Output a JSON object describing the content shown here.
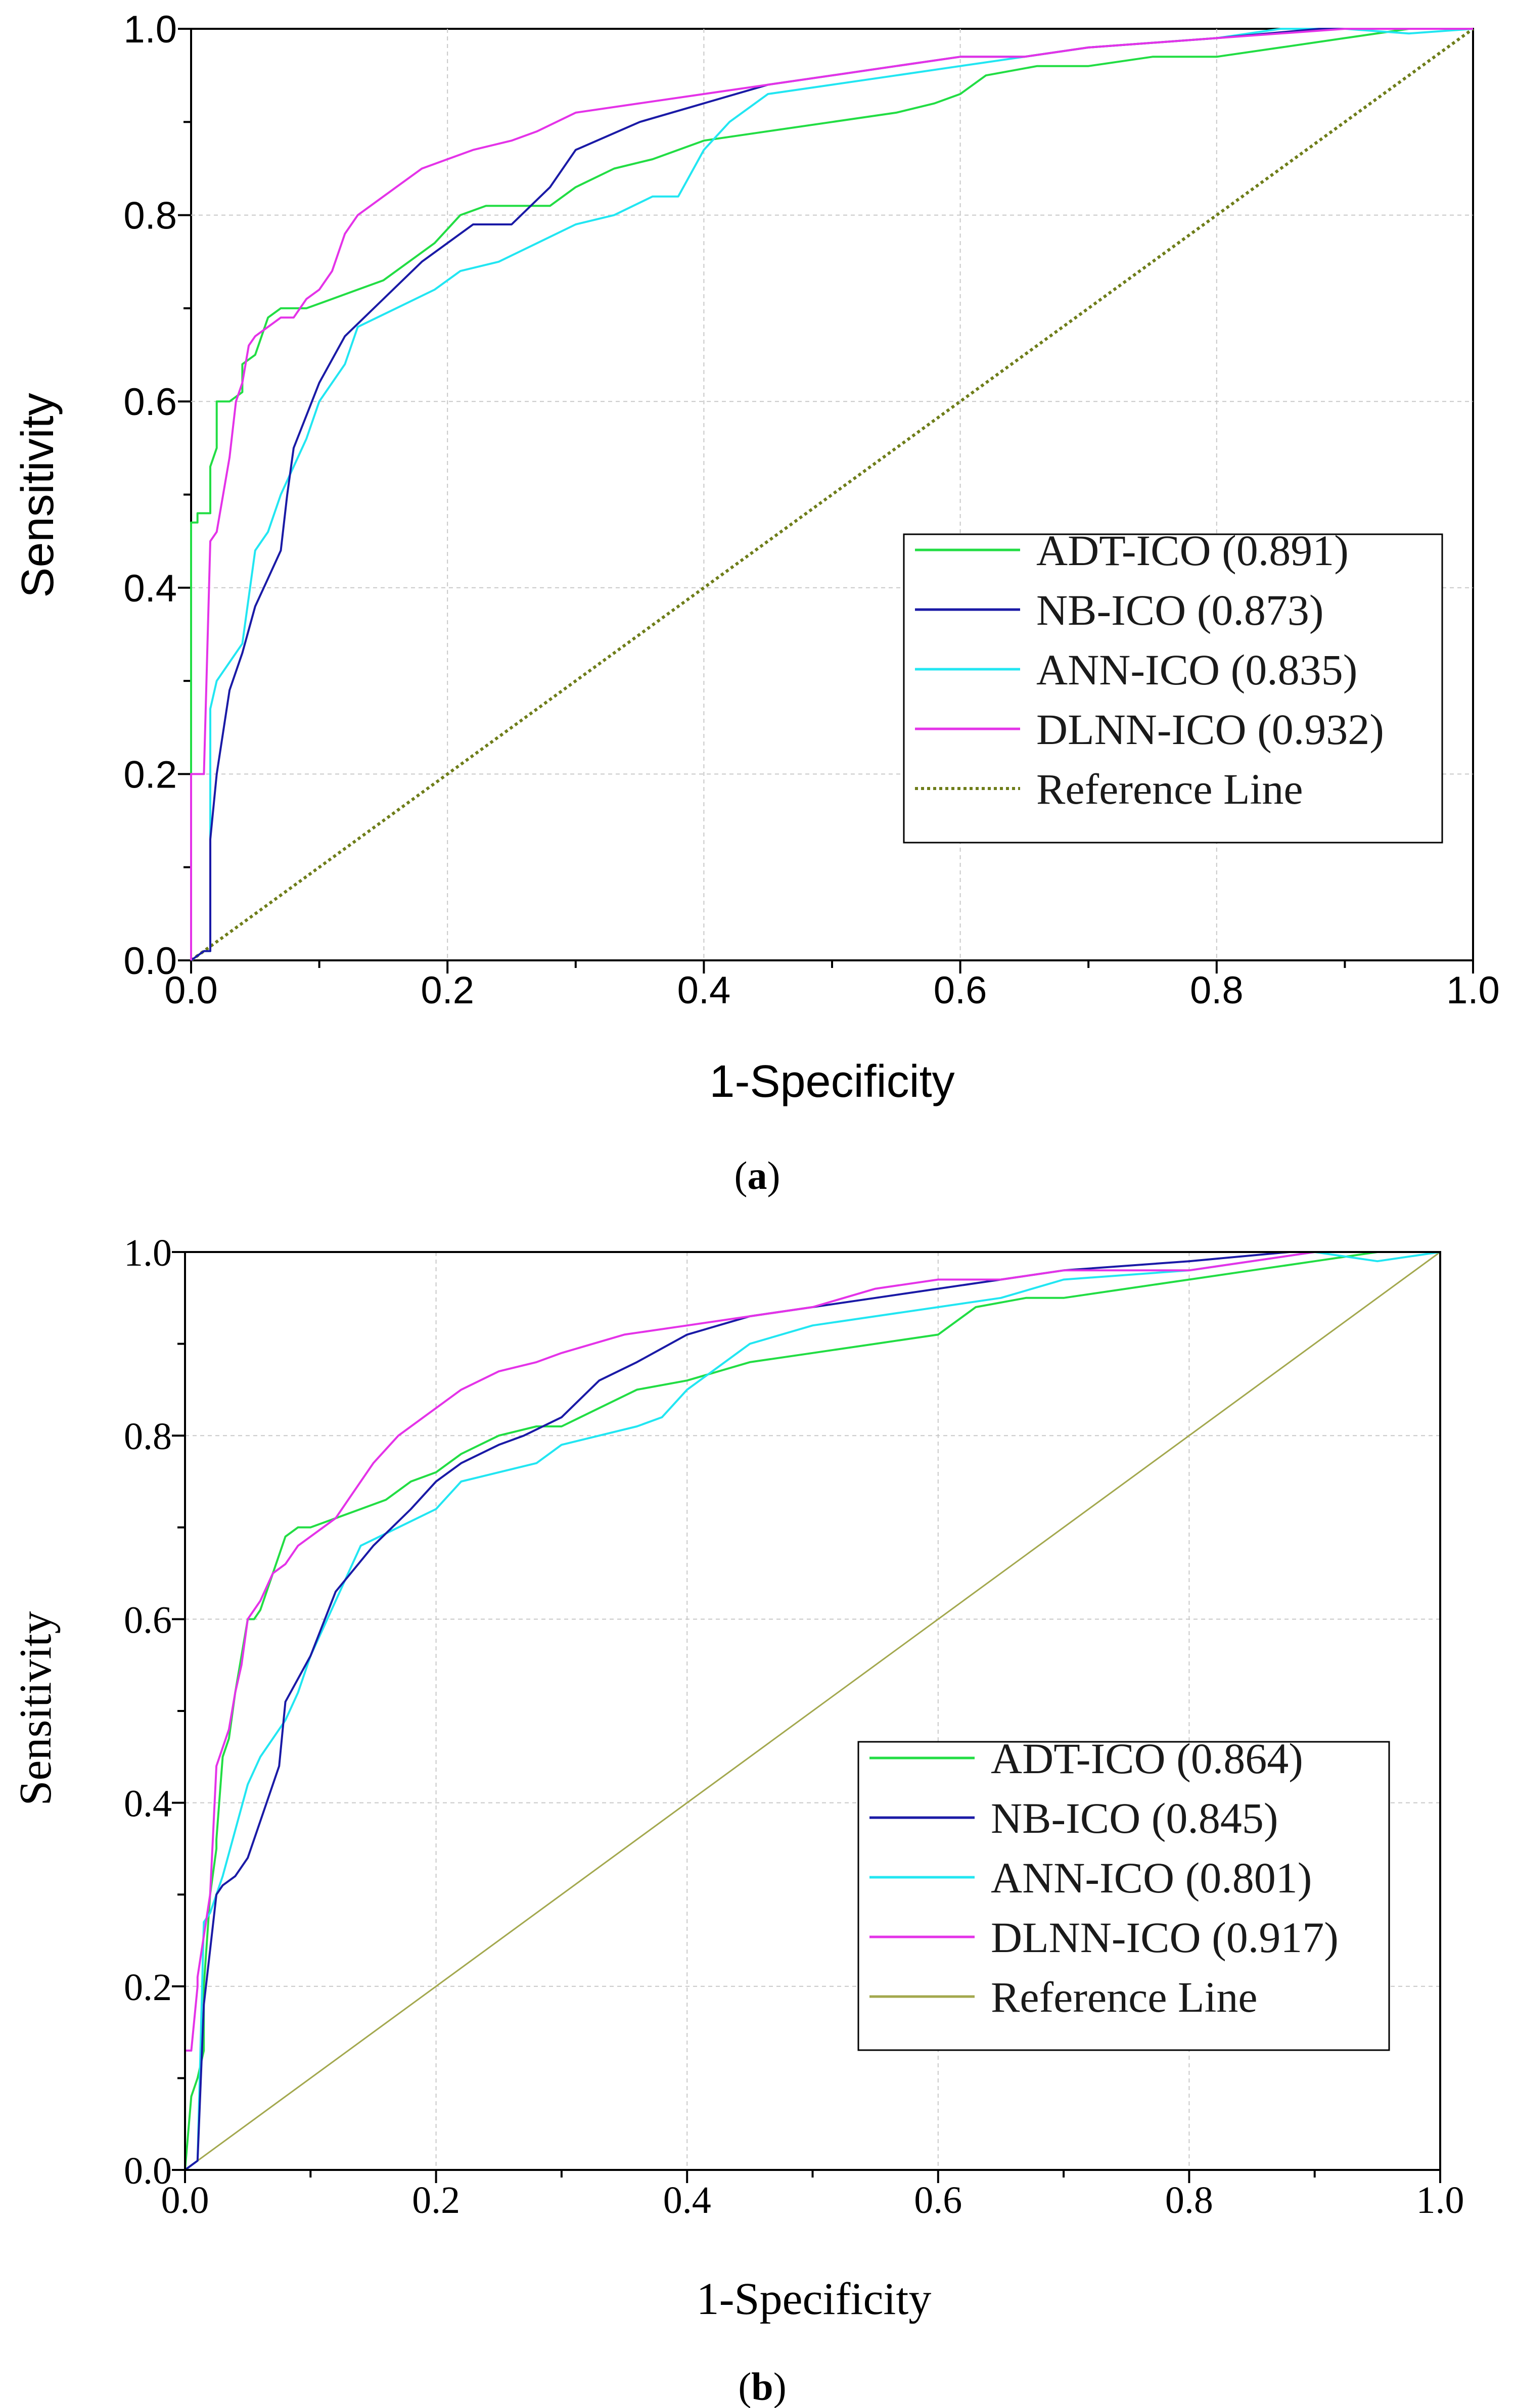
{
  "chart_data": [
    {
      "type": "line",
      "panel_label": "a",
      "xlabel": "1-Specificity",
      "ylabel": "Sensitivity",
      "xlim": [
        0,
        1
      ],
      "ylim": [
        0,
        1
      ],
      "x_ticks": [
        "0.0",
        "0.2",
        "0.4",
        "0.6",
        "0.8",
        "1.0"
      ],
      "y_ticks": [
        "0.0",
        "0.2",
        "0.4",
        "0.6",
        "0.8",
        "1.0"
      ],
      "grid": true,
      "legend_position": "bottom-right",
      "series": [
        {
          "name": "ADT-ICO (0.891)",
          "color": "#22dd44",
          "x": [
            0,
            0,
            0.005,
            0.005,
            0.015,
            0.015,
            0.02,
            0.02,
            0.03,
            0.04,
            0.04,
            0.05,
            0.055,
            0.06,
            0.07,
            0.09,
            0.11,
            0.13,
            0.15,
            0.17,
            0.19,
            0.21,
            0.23,
            0.25,
            0.28,
            0.3,
            0.33,
            0.36,
            0.4,
            0.45,
            0.5,
            0.55,
            0.58,
            0.6,
            0.62,
            0.66,
            0.7,
            0.75,
            0.8,
            0.85,
            0.9,
            0.95,
            1.0
          ],
          "y": [
            0,
            0.47,
            0.47,
            0.48,
            0.48,
            0.53,
            0.55,
            0.6,
            0.6,
            0.61,
            0.64,
            0.65,
            0.67,
            0.69,
            0.7,
            0.7,
            0.71,
            0.72,
            0.73,
            0.75,
            0.77,
            0.8,
            0.81,
            0.81,
            0.81,
            0.83,
            0.85,
            0.86,
            0.88,
            0.89,
            0.9,
            0.91,
            0.92,
            0.93,
            0.95,
            0.96,
            0.96,
            0.97,
            0.97,
            0.98,
            0.99,
            1.0,
            1.0
          ]
        },
        {
          "name": "NB-ICO (0.873)",
          "color": "#1a1aa6",
          "x": [
            0,
            0.01,
            0.015,
            0.015,
            0.02,
            0.03,
            0.04,
            0.05,
            0.06,
            0.07,
            0.075,
            0.08,
            0.1,
            0.12,
            0.15,
            0.18,
            0.2,
            0.22,
            0.25,
            0.28,
            0.3,
            0.35,
            0.4,
            0.45,
            0.5,
            0.55,
            0.6,
            0.65,
            0.7,
            0.8,
            0.88,
            0.95,
            1.0
          ],
          "y": [
            0,
            0.01,
            0.01,
            0.13,
            0.2,
            0.29,
            0.33,
            0.38,
            0.41,
            0.44,
            0.5,
            0.55,
            0.62,
            0.67,
            0.71,
            0.75,
            0.77,
            0.79,
            0.79,
            0.83,
            0.87,
            0.9,
            0.92,
            0.94,
            0.95,
            0.96,
            0.97,
            0.97,
            0.98,
            0.99,
            1.0,
            1.0,
            1.0
          ]
        },
        {
          "name": "ANN-ICO (0.835)",
          "color": "#22e6f2",
          "x": [
            0,
            0.01,
            0.015,
            0.015,
            0.02,
            0.04,
            0.05,
            0.06,
            0.07,
            0.08,
            0.09,
            0.1,
            0.12,
            0.13,
            0.16,
            0.19,
            0.21,
            0.24,
            0.27,
            0.3,
            0.33,
            0.36,
            0.38,
            0.4,
            0.42,
            0.45,
            0.5,
            0.55,
            0.6,
            0.65,
            0.7,
            0.8,
            0.85,
            0.9,
            0.95,
            1.0
          ],
          "y": [
            0,
            0.01,
            0.01,
            0.27,
            0.3,
            0.34,
            0.44,
            0.46,
            0.5,
            0.53,
            0.56,
            0.6,
            0.64,
            0.68,
            0.7,
            0.72,
            0.74,
            0.75,
            0.77,
            0.79,
            0.8,
            0.82,
            0.82,
            0.87,
            0.9,
            0.93,
            0.94,
            0.95,
            0.96,
            0.97,
            0.98,
            0.99,
            1.0,
            1.0,
            0.995,
            1.0
          ]
        },
        {
          "name": "DLNN-ICO (0.932)",
          "color": "#e433e8",
          "x": [
            0,
            0,
            0.01,
            0.015,
            0.02,
            0.025,
            0.03,
            0.035,
            0.04,
            0.045,
            0.05,
            0.06,
            0.07,
            0.08,
            0.09,
            0.1,
            0.11,
            0.12,
            0.13,
            0.14,
            0.16,
            0.18,
            0.2,
            0.22,
            0.25,
            0.27,
            0.3,
            0.35,
            0.4,
            0.45,
            0.5,
            0.55,
            0.6,
            0.65,
            0.7,
            0.8,
            0.9,
            1.0
          ],
          "y": [
            0,
            0.2,
            0.2,
            0.45,
            0.46,
            0.5,
            0.54,
            0.6,
            0.62,
            0.66,
            0.67,
            0.68,
            0.69,
            0.69,
            0.71,
            0.72,
            0.74,
            0.78,
            0.8,
            0.81,
            0.83,
            0.85,
            0.86,
            0.87,
            0.88,
            0.89,
            0.91,
            0.92,
            0.93,
            0.94,
            0.95,
            0.96,
            0.97,
            0.97,
            0.98,
            0.99,
            1.0,
            1.0
          ]
        },
        {
          "name": "Reference Line",
          "color": "#6e7d19",
          "dash": "dotted",
          "x": [
            0,
            1
          ],
          "y": [
            0,
            1
          ]
        }
      ]
    },
    {
      "type": "line",
      "panel_label": "b",
      "xlabel": "1-Specificity",
      "ylabel": "Sensitivity",
      "xlim": [
        0,
        1
      ],
      "ylim": [
        0,
        1
      ],
      "x_ticks": [
        "0.0",
        "0.2",
        "0.4",
        "0.6",
        "0.8",
        "1.0"
      ],
      "y_ticks": [
        "0.0",
        "0.2",
        "0.4",
        "0.6",
        "0.8",
        "1.0"
      ],
      "grid": true,
      "legend_position": "bottom-right",
      "series": [
        {
          "name": "ADT-ICO (0.864)",
          "color": "#22dd44",
          "x": [
            0,
            0.005,
            0.005,
            0.01,
            0.015,
            0.015,
            0.02,
            0.025,
            0.025,
            0.03,
            0.035,
            0.04,
            0.05,
            0.055,
            0.06,
            0.07,
            0.08,
            0.09,
            0.1,
            0.12,
            0.14,
            0.16,
            0.18,
            0.2,
            0.22,
            0.25,
            0.28,
            0.3,
            0.33,
            0.36,
            0.4,
            0.45,
            0.5,
            0.55,
            0.6,
            0.63,
            0.67,
            0.7,
            0.75,
            0.8,
            0.85,
            0.9,
            0.95,
            1.0
          ],
          "y": [
            0,
            0.08,
            0.08,
            0.1,
            0.13,
            0.2,
            0.3,
            0.35,
            0.36,
            0.45,
            0.47,
            0.52,
            0.6,
            0.6,
            0.61,
            0.65,
            0.69,
            0.7,
            0.7,
            0.71,
            0.72,
            0.73,
            0.75,
            0.76,
            0.78,
            0.8,
            0.81,
            0.81,
            0.83,
            0.85,
            0.86,
            0.88,
            0.89,
            0.9,
            0.91,
            0.94,
            0.95,
            0.95,
            0.96,
            0.97,
            0.98,
            0.99,
            1.0,
            1.0
          ]
        },
        {
          "name": "NB-ICO (0.845)",
          "color": "#1a1aa6",
          "x": [
            0,
            0.01,
            0.015,
            0.02,
            0.025,
            0.03,
            0.04,
            0.05,
            0.06,
            0.075,
            0.08,
            0.1,
            0.12,
            0.15,
            0.18,
            0.2,
            0.22,
            0.25,
            0.27,
            0.3,
            0.33,
            0.36,
            0.4,
            0.45,
            0.5,
            0.55,
            0.6,
            0.65,
            0.7,
            0.8,
            0.88,
            0.95,
            1.0
          ],
          "y": [
            0,
            0.01,
            0.18,
            0.24,
            0.3,
            0.31,
            0.32,
            0.34,
            0.38,
            0.44,
            0.51,
            0.56,
            0.63,
            0.68,
            0.72,
            0.75,
            0.77,
            0.79,
            0.8,
            0.82,
            0.86,
            0.88,
            0.91,
            0.93,
            0.94,
            0.95,
            0.96,
            0.97,
            0.98,
            0.99,
            1.0,
            1.0,
            1.0
          ]
        },
        {
          "name": "ANN-ICO (0.801)",
          "color": "#22e6f2",
          "x": [
            0,
            0.01,
            0.015,
            0.02,
            0.03,
            0.04,
            0.05,
            0.06,
            0.07,
            0.08,
            0.09,
            0.1,
            0.12,
            0.14,
            0.17,
            0.2,
            0.22,
            0.25,
            0.28,
            0.3,
            0.33,
            0.36,
            0.38,
            0.4,
            0.42,
            0.45,
            0.5,
            0.55,
            0.6,
            0.65,
            0.7,
            0.8,
            0.85,
            0.9,
            0.95,
            1.0
          ],
          "y": [
            0,
            0.01,
            0.27,
            0.28,
            0.32,
            0.37,
            0.42,
            0.45,
            0.47,
            0.49,
            0.52,
            0.56,
            0.62,
            0.68,
            0.7,
            0.72,
            0.75,
            0.76,
            0.77,
            0.79,
            0.8,
            0.81,
            0.82,
            0.85,
            0.87,
            0.9,
            0.92,
            0.93,
            0.94,
            0.95,
            0.97,
            0.98,
            0.99,
            1.0,
            0.99,
            1.0
          ]
        },
        {
          "name": "DLNN-ICO (0.917)",
          "color": "#e433e8",
          "x": [
            0,
            0,
            0.005,
            0.01,
            0.01,
            0.02,
            0.025,
            0.03,
            0.035,
            0.04,
            0.045,
            0.05,
            0.06,
            0.07,
            0.08,
            0.09,
            0.1,
            0.12,
            0.13,
            0.15,
            0.17,
            0.2,
            0.22,
            0.25,
            0.28,
            0.3,
            0.35,
            0.4,
            0.45,
            0.5,
            0.55,
            0.6,
            0.65,
            0.7,
            0.8,
            0.9,
            1.0
          ],
          "y": [
            0,
            0.13,
            0.13,
            0.2,
            0.21,
            0.3,
            0.44,
            0.46,
            0.48,
            0.52,
            0.55,
            0.6,
            0.62,
            0.65,
            0.66,
            0.68,
            0.69,
            0.71,
            0.73,
            0.77,
            0.8,
            0.83,
            0.85,
            0.87,
            0.88,
            0.89,
            0.91,
            0.92,
            0.93,
            0.94,
            0.96,
            0.97,
            0.97,
            0.98,
            0.98,
            1.0,
            1.0
          ]
        },
        {
          "name": "Reference Line",
          "color": "#a3a84e",
          "dash": "solid",
          "x": [
            0,
            1
          ],
          "y": [
            0,
            1
          ]
        }
      ]
    }
  ]
}
